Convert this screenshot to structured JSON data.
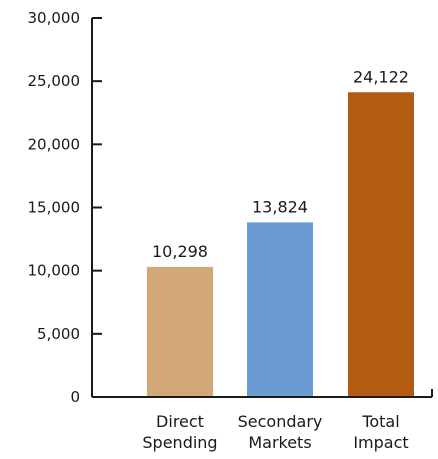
{
  "chart_data": {
    "type": "bar",
    "categories": [
      [
        "Direct",
        "Spending"
      ],
      [
        "Secondary",
        "Markets"
      ],
      [
        "Total",
        "Impact"
      ]
    ],
    "values": [
      10298,
      13824,
      24122
    ],
    "value_labels": [
      "10,298",
      "13,824",
      "24,122"
    ],
    "colors": [
      "#d2a878",
      "#6a9bd3",
      "#b35b12"
    ],
    "ylim": [
      0,
      30000
    ],
    "yticks": [
      0,
      5000,
      10000,
      15000,
      20000,
      25000,
      30000
    ],
    "ytick_labels": [
      "0",
      "5,000",
      "10,000",
      "15,000",
      "20,000",
      "25,000",
      "30,000"
    ],
    "grid": false,
    "title": "",
    "xlabel": "",
    "ylabel": ""
  }
}
